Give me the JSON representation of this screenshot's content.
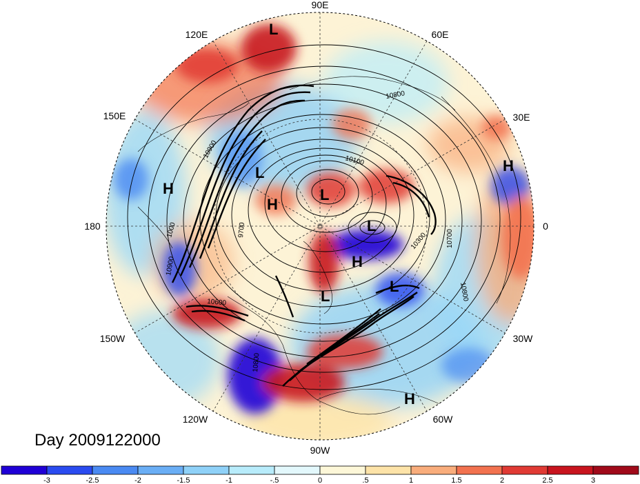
{
  "title": "Day 2009122000",
  "longitude_labels": [
    "90E",
    "60E",
    "30E",
    "0",
    "30W",
    "60W",
    "90W",
    "120W",
    "150W",
    "180",
    "150E",
    "120E"
  ],
  "pressure_centers": [
    {
      "type": "L"
    },
    {
      "type": "L"
    },
    {
      "type": "L"
    },
    {
      "type": "L"
    },
    {
      "type": "L"
    },
    {
      "type": "L"
    },
    {
      "type": "H"
    },
    {
      "type": "H"
    },
    {
      "type": "H"
    },
    {
      "type": "H"
    },
    {
      "type": "H"
    }
  ],
  "contour_labels": [
    "10800",
    "10100",
    "10700",
    "10300",
    "10800",
    "10900",
    "10900",
    "1000",
    "9700",
    "10600",
    "10800"
  ],
  "colorbar": {
    "tick_labels": [
      "-3",
      "-2.5",
      "-2",
      "-1.5",
      "-1",
      "-.5",
      "0",
      ".5",
      "1",
      "1.5",
      "2",
      "2.5",
      "3"
    ],
    "colors": [
      "#1f00d6",
      "#2a4bf0",
      "#4a8af2",
      "#6aaef5",
      "#8fd1f8",
      "#b8ecfb",
      "#e3f8fc",
      "#fdf7d8",
      "#fde3a8",
      "#f9ad7c",
      "#f2724f",
      "#e03a34",
      "#c8141e",
      "#a00a1a"
    ]
  }
}
